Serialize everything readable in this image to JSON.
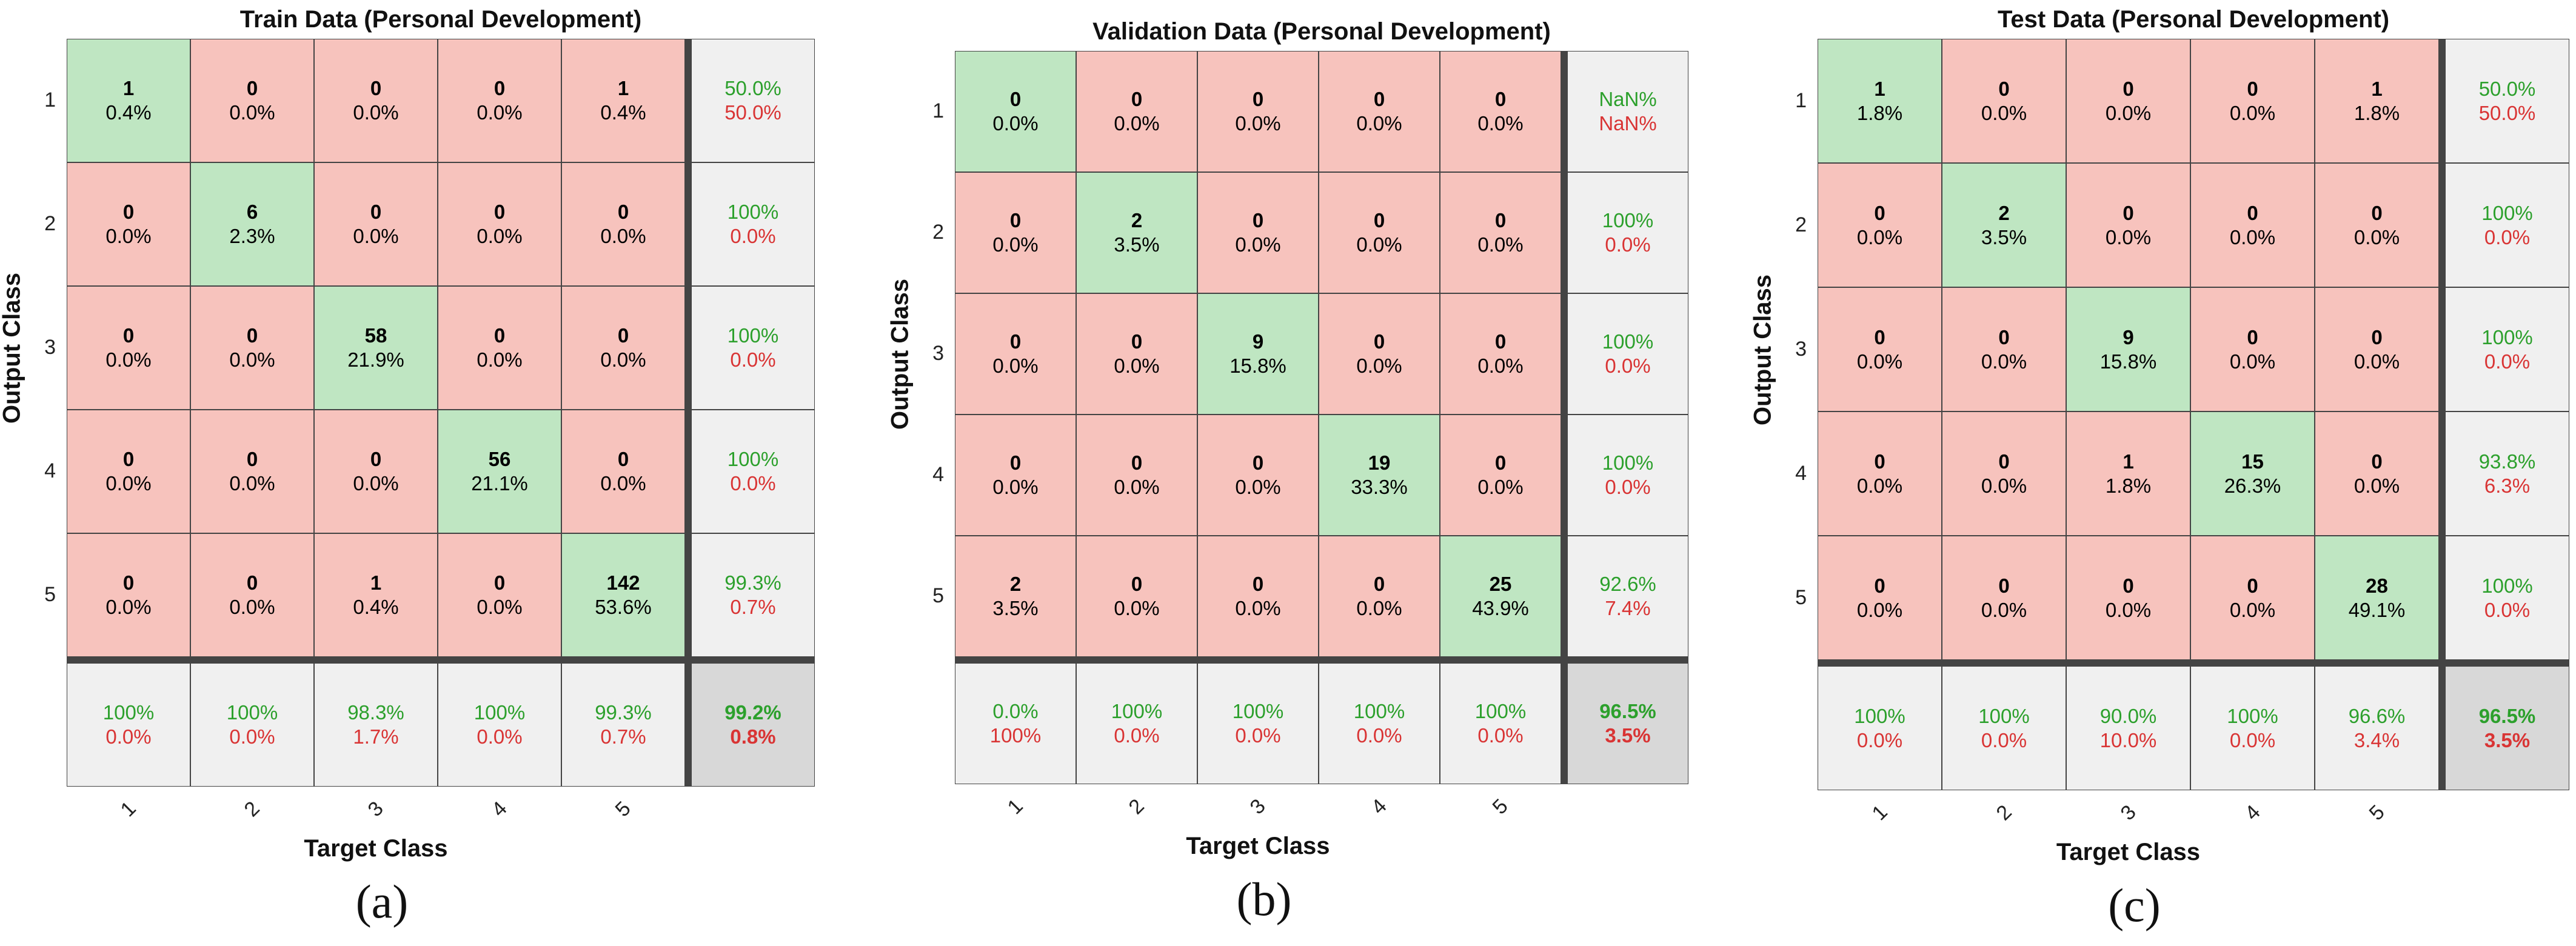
{
  "chart_data": [
    {
      "type": "heatmap",
      "title": "Train Data (Personal Development)",
      "xlabel": "Target Class",
      "ylabel": "Output Class",
      "classes": [
        "1",
        "2",
        "3",
        "4",
        "5"
      ],
      "counts": [
        [
          1,
          0,
          0,
          0,
          1
        ],
        [
          0,
          6,
          0,
          0,
          0
        ],
        [
          0,
          0,
          58,
          0,
          0
        ],
        [
          0,
          0,
          0,
          56,
          0
        ],
        [
          0,
          0,
          1,
          0,
          142
        ]
      ],
      "percents": [
        [
          "0.4%",
          "0.0%",
          "0.0%",
          "0.0%",
          "0.4%"
        ],
        [
          "0.0%",
          "2.3%",
          "0.0%",
          "0.0%",
          "0.0%"
        ],
        [
          "0.0%",
          "0.0%",
          "21.9%",
          "0.0%",
          "0.0%"
        ],
        [
          "0.0%",
          "0.0%",
          "0.0%",
          "21.1%",
          "0.0%"
        ],
        [
          "0.0%",
          "0.0%",
          "0.4%",
          "0.0%",
          "53.6%"
        ]
      ],
      "row_summary": [
        [
          "50.0%",
          "50.0%"
        ],
        [
          "100%",
          "0.0%"
        ],
        [
          "100%",
          "0.0%"
        ],
        [
          "100%",
          "0.0%"
        ],
        [
          "99.3%",
          "0.7%"
        ]
      ],
      "col_summary": [
        [
          "100%",
          "0.0%"
        ],
        [
          "100%",
          "0.0%"
        ],
        [
          "98.3%",
          "1.7%"
        ],
        [
          "100%",
          "0.0%"
        ],
        [
          "99.3%",
          "0.7%"
        ]
      ],
      "total": [
        "99.2%",
        "0.8%"
      ],
      "panel_label": "(a)"
    },
    {
      "type": "heatmap",
      "title": "Validation Data (Personal Development)",
      "xlabel": "Target Class",
      "ylabel": "Output Class",
      "classes": [
        "1",
        "2",
        "3",
        "4",
        "5"
      ],
      "counts": [
        [
          0,
          0,
          0,
          0,
          0
        ],
        [
          0,
          2,
          0,
          0,
          0
        ],
        [
          0,
          0,
          9,
          0,
          0
        ],
        [
          0,
          0,
          0,
          19,
          0
        ],
        [
          2,
          0,
          0,
          0,
          25
        ]
      ],
      "percents": [
        [
          "0.0%",
          "0.0%",
          "0.0%",
          "0.0%",
          "0.0%"
        ],
        [
          "0.0%",
          "3.5%",
          "0.0%",
          "0.0%",
          "0.0%"
        ],
        [
          "0.0%",
          "0.0%",
          "15.8%",
          "0.0%",
          "0.0%"
        ],
        [
          "0.0%",
          "0.0%",
          "0.0%",
          "33.3%",
          "0.0%"
        ],
        [
          "3.5%",
          "0.0%",
          "0.0%",
          "0.0%",
          "43.9%"
        ]
      ],
      "row_summary": [
        [
          "NaN%",
          "NaN%"
        ],
        [
          "100%",
          "0.0%"
        ],
        [
          "100%",
          "0.0%"
        ],
        [
          "100%",
          "0.0%"
        ],
        [
          "92.6%",
          "7.4%"
        ]
      ],
      "col_summary": [
        [
          "0.0%",
          "100%"
        ],
        [
          "100%",
          "0.0%"
        ],
        [
          "100%",
          "0.0%"
        ],
        [
          "100%",
          "0.0%"
        ],
        [
          "100%",
          "0.0%"
        ]
      ],
      "total": [
        "96.5%",
        "3.5%"
      ],
      "panel_label": "(b)"
    },
    {
      "type": "heatmap",
      "title": "Test Data (Personal Development)",
      "xlabel": "Target Class",
      "ylabel": "Output Class",
      "classes": [
        "1",
        "2",
        "3",
        "4",
        "5"
      ],
      "counts": [
        [
          1,
          0,
          0,
          0,
          1
        ],
        [
          0,
          2,
          0,
          0,
          0
        ],
        [
          0,
          0,
          9,
          0,
          0
        ],
        [
          0,
          0,
          1,
          15,
          0
        ],
        [
          0,
          0,
          0,
          0,
          28
        ]
      ],
      "percents": [
        [
          "1.8%",
          "0.0%",
          "0.0%",
          "0.0%",
          "1.8%"
        ],
        [
          "0.0%",
          "3.5%",
          "0.0%",
          "0.0%",
          "0.0%"
        ],
        [
          "0.0%",
          "0.0%",
          "15.8%",
          "0.0%",
          "0.0%"
        ],
        [
          "0.0%",
          "0.0%",
          "1.8%",
          "26.3%",
          "0.0%"
        ],
        [
          "0.0%",
          "0.0%",
          "0.0%",
          "0.0%",
          "49.1%"
        ]
      ],
      "row_summary": [
        [
          "50.0%",
          "50.0%"
        ],
        [
          "100%",
          "0.0%"
        ],
        [
          "100%",
          "0.0%"
        ],
        [
          "93.8%",
          "6.3%"
        ],
        [
          "100%",
          "0.0%"
        ]
      ],
      "col_summary": [
        [
          "100%",
          "0.0%"
        ],
        [
          "100%",
          "0.0%"
        ],
        [
          "90.0%",
          "10.0%"
        ],
        [
          "100%",
          "0.0%"
        ],
        [
          "96.6%",
          "3.4%"
        ]
      ],
      "total": [
        "96.5%",
        "3.5%"
      ],
      "panel_label": "(c)"
    }
  ],
  "colors": {
    "correct_cell": "#bfe6c2",
    "incorrect_cell": "#f7c3bd",
    "summary_cell": "#f0f0f0",
    "total_cell": "#d8d8d8",
    "correct_text": "#2ca02c",
    "incorrect_text": "#d93434"
  }
}
